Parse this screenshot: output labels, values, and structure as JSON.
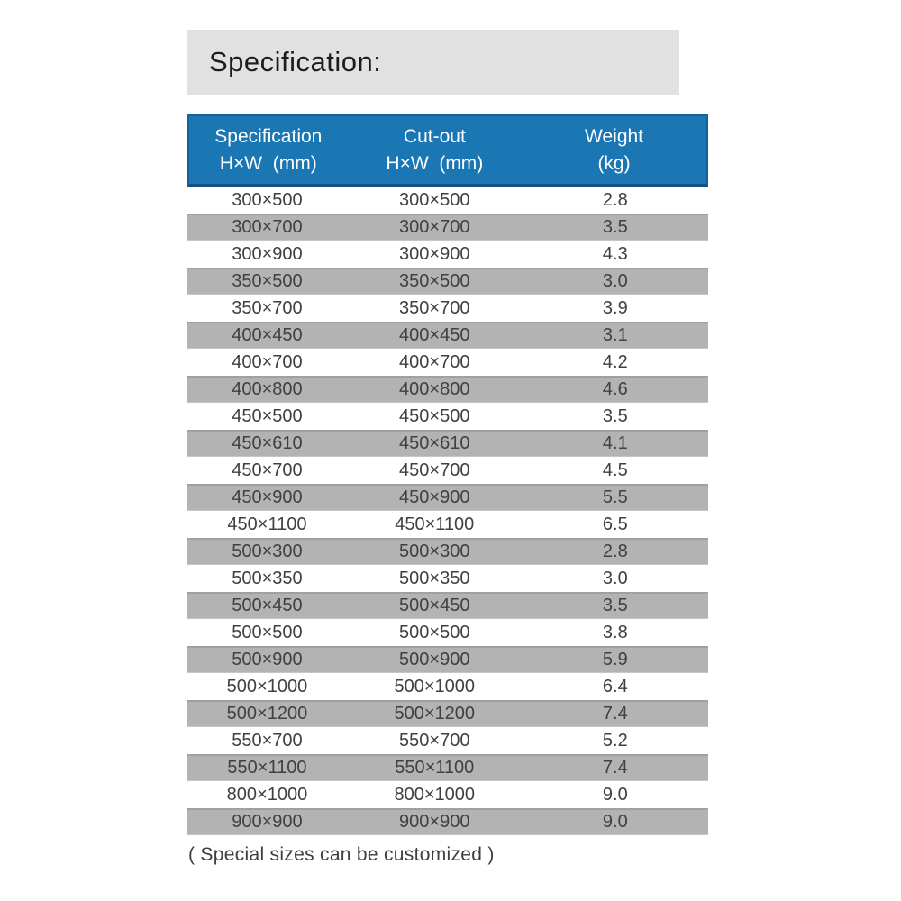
{
  "page": {
    "title": "Specification:",
    "footnote": "( Special sizes can be customized )"
  },
  "table": {
    "columns": [
      {
        "line1": "Specification",
        "line2": "H×W  (mm)"
      },
      {
        "line1": "Cut-out",
        "line2": "H×W  (mm)"
      },
      {
        "line1": "Weight",
        "line2": "(kg)"
      }
    ],
    "rows": [
      {
        "spec": "300×500",
        "cutout": "300×500",
        "weight": "2.8"
      },
      {
        "spec": "300×700",
        "cutout": "300×700",
        "weight": "3.5"
      },
      {
        "spec": "300×900",
        "cutout": "300×900",
        "weight": "4.3"
      },
      {
        "spec": "350×500",
        "cutout": "350×500",
        "weight": "3.0"
      },
      {
        "spec": "350×700",
        "cutout": "350×700",
        "weight": "3.9"
      },
      {
        "spec": "400×450",
        "cutout": "400×450",
        "weight": "3.1"
      },
      {
        "spec": "400×700",
        "cutout": "400×700",
        "weight": "4.2"
      },
      {
        "spec": "400×800",
        "cutout": "400×800",
        "weight": "4.6"
      },
      {
        "spec": "450×500",
        "cutout": "450×500",
        "weight": "3.5"
      },
      {
        "spec": "450×610",
        "cutout": "450×610",
        "weight": "4.1"
      },
      {
        "spec": "450×700",
        "cutout": "450×700",
        "weight": "4.5"
      },
      {
        "spec": "450×900",
        "cutout": "450×900",
        "weight": "5.5"
      },
      {
        "spec": "450×1100",
        "cutout": "450×1100",
        "weight": "6.5"
      },
      {
        "spec": "500×300",
        "cutout": "500×300",
        "weight": "2.8"
      },
      {
        "spec": "500×350",
        "cutout": "500×350",
        "weight": "3.0"
      },
      {
        "spec": "500×450",
        "cutout": "500×450",
        "weight": "3.5"
      },
      {
        "spec": "500×500",
        "cutout": "500×500",
        "weight": "3.8"
      },
      {
        "spec": "500×900",
        "cutout": "500×900",
        "weight": "5.9"
      },
      {
        "spec": "500×1000",
        "cutout": "500×1000",
        "weight": "6.4"
      },
      {
        "spec": "500×1200",
        "cutout": "500×1200",
        "weight": "7.4"
      },
      {
        "spec": "550×700",
        "cutout": "550×700",
        "weight": "5.2"
      },
      {
        "spec": "550×1100",
        "cutout": "550×1100",
        "weight": "7.4"
      },
      {
        "spec": "800×1000",
        "cutout": "800×1000",
        "weight": "9.0"
      },
      {
        "spec": "900×900",
        "cutout": "900×900",
        "weight": "9.0"
      }
    ]
  },
  "colors": {
    "header_bg": "#1b76b4",
    "header_border": "#174f80",
    "alt_row_bg": "#b3b3b3",
    "title_bar_bg": "#e1e1e1",
    "body_text": "#404040",
    "header_text": "#ffffff"
  }
}
